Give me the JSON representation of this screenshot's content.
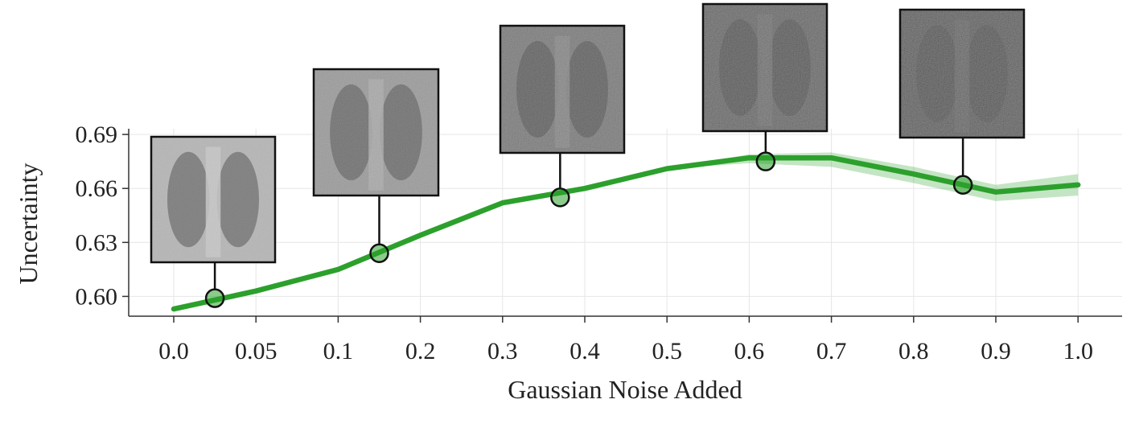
{
  "chart_data": {
    "type": "line",
    "xlabel": "Gaussian Noise Added",
    "ylabel": "Uncertainty",
    "x_tick_labels": [
      "0.0",
      "0.05",
      "0.1",
      "0.2",
      "0.3",
      "0.4",
      "0.5",
      "0.6",
      "0.7",
      "0.8",
      "0.9",
      "1.0"
    ],
    "y_ticks": [
      "0.60",
      "0.63",
      "0.66",
      "0.69"
    ],
    "ylim": [
      0.589,
      0.699
    ],
    "grid": true,
    "series": [
      {
        "color": "#2ca02c",
        "x": [
          "0.0",
          "0.05",
          "0.1",
          "0.2",
          "0.3",
          "0.4",
          "0.5",
          "0.6",
          "0.7",
          "0.8",
          "0.9",
          "1.0"
        ],
        "values": [
          0.593,
          0.603,
          0.615,
          0.634,
          0.652,
          0.66,
          0.671,
          0.677,
          0.677,
          0.668,
          0.658,
          0.662
        ],
        "band_lower": [
          0.593,
          0.603,
          0.615,
          0.634,
          0.652,
          0.66,
          0.671,
          0.674,
          0.672,
          0.663,
          0.653,
          0.656
        ],
        "band_upper": [
          0.593,
          0.603,
          0.615,
          0.634,
          0.652,
          0.66,
          0.671,
          0.679,
          0.68,
          0.672,
          0.662,
          0.668
        ]
      }
    ],
    "annotations": [
      {
        "kind": "chest-xray-thumbnail",
        "noise_level": "0.0",
        "x_position": 0.5,
        "y": 0.599
      },
      {
        "kind": "chest-xray-thumbnail",
        "noise_level": "0.1",
        "x_position": 2.5,
        "y": 0.624
      },
      {
        "kind": "chest-xray-thumbnail",
        "noise_level": "0.3",
        "x_position": 4.7,
        "y": 0.655
      },
      {
        "kind": "chest-xray-thumbnail",
        "noise_level": "0.6",
        "x_position": 7.2,
        "y": 0.675
      },
      {
        "kind": "chest-xray-thumbnail",
        "noise_level": "0.9",
        "x_position": 9.6,
        "y": 0.662
      }
    ]
  }
}
